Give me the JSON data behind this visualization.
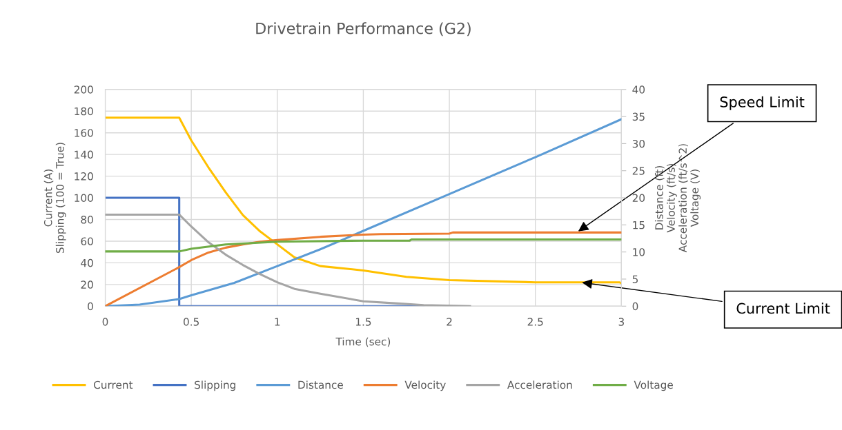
{
  "chart_data": {
    "type": "line",
    "title": "Drivetrain Performance (G2)",
    "xlabel": "Time (sec)",
    "ylabel": "Current (A)\nSlipping (100 = True)",
    "y2label": "Distance (ft)\nVelocity (ft/s)\nAcceleration (ft/s^2)\nVoltage (V)",
    "xlim": [
      0,
      3
    ],
    "xticks": [
      0,
      0.5,
      1,
      1.5,
      2,
      2.5,
      3
    ],
    "ylim": [
      0,
      200
    ],
    "yticks": [
      0,
      20,
      40,
      60,
      80,
      100,
      120,
      140,
      160,
      180,
      200
    ],
    "y2lim": [
      0,
      40
    ],
    "y2ticks": [
      0,
      5,
      10,
      15,
      20,
      25,
      30,
      35,
      40
    ],
    "grid": true,
    "legend": "bottom",
    "marker": "none",
    "line_style": "solid",
    "series": [
      {
        "name": "Current",
        "color": "#ffc000",
        "x": [
          0,
          0.43,
          0.5,
          0.6,
          0.7,
          0.8,
          0.9,
          1.0,
          1.1,
          1.25,
          1.5,
          1.75,
          2.0,
          2.5,
          2.99,
          3.0
        ],
        "values": [
          174,
          174,
          153,
          128,
          105,
          84,
          69,
          57,
          45,
          37,
          33,
          27,
          24,
          22,
          22,
          21
        ]
      },
      {
        "name": "Slipping",
        "color": "#4472c4",
        "x": [
          0,
          0.43,
          0.43,
          1.85
        ],
        "values": [
          100,
          100,
          0,
          0
        ]
      },
      {
        "name": "Distance",
        "color": "#5b9bd5",
        "axis": "y2",
        "x": [
          0,
          0.2,
          0.43,
          0.5,
          0.75,
          1.0,
          1.25,
          1.5,
          2.0,
          2.5,
          3.0
        ],
        "values": [
          0,
          0.3,
          1.3,
          2.0,
          4.3,
          7.4,
          10.5,
          13.9,
          20.7,
          27.5,
          34.5
        ]
      },
      {
        "name": "Velocity",
        "color": "#ed7d31",
        "axis": "y2",
        "x": [
          0,
          0.43,
          0.5,
          0.6,
          0.7,
          0.8,
          0.9,
          1.0,
          1.25,
          1.5,
          1.6,
          2.0,
          2.02,
          3.0
        ],
        "values": [
          0,
          7.2,
          8.5,
          9.9,
          10.8,
          11.4,
          11.9,
          12.2,
          12.8,
          13.2,
          13.3,
          13.4,
          13.6,
          13.6
        ]
      },
      {
        "name": "Acceleration",
        "color": "#a5a5a5",
        "axis": "y2",
        "x": [
          0,
          0.43,
          0.5,
          0.6,
          0.7,
          0.8,
          0.9,
          1.0,
          1.1,
          1.25,
          1.5,
          1.7,
          1.85,
          2.12
        ],
        "values": [
          16.9,
          16.9,
          14.7,
          11.8,
          9.5,
          7.6,
          5.9,
          4.4,
          3.2,
          2.3,
          0.9,
          0.5,
          0.2,
          0
        ]
      },
      {
        "name": "Voltage",
        "color": "#70ad47",
        "axis": "y2",
        "x": [
          0,
          0.43,
          0.5,
          0.7,
          1.0,
          1.5,
          1.77,
          1.78,
          3.0
        ],
        "values": [
          10.1,
          10.1,
          10.6,
          11.4,
          11.9,
          12.1,
          12.1,
          12.3,
          12.3
        ]
      }
    ],
    "annotations": [
      {
        "text": "Speed Limit",
        "x": 2.74,
        "y": 68
      },
      {
        "text": "Current Limit",
        "x": 2.76,
        "y": 22
      }
    ]
  }
}
